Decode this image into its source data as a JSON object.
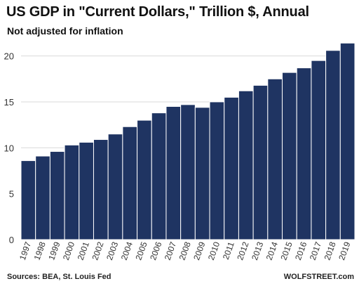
{
  "header": {
    "title": "US GDP in \"Current Dollars,\" Trillion $, Annual",
    "subtitle": "Not adjusted for inflation"
  },
  "footer": {
    "source": "Sources: BEA, St. Louis Fed",
    "brand": "WOLFSTREET.com"
  },
  "colors": {
    "bar": "#1f3462",
    "bar_edge": "#ffffff",
    "grid": "#d9d9d9",
    "axis_text": "#333333"
  },
  "chart_data": {
    "type": "bar",
    "title": "US GDP in \"Current Dollars,\" Trillion $, Annual",
    "subtitle": "Not adjusted for inflation",
    "xlabel": "",
    "ylabel": "",
    "categories": [
      "1997",
      "1998",
      "1999",
      "2000",
      "2001",
      "2002",
      "2003",
      "2004",
      "2005",
      "2006",
      "2007",
      "2008",
      "2009",
      "2010",
      "2011",
      "2012",
      "2013",
      "2014",
      "2015",
      "2016",
      "2017",
      "2018",
      "2019"
    ],
    "values": [
      8.6,
      9.1,
      9.6,
      10.3,
      10.6,
      10.9,
      11.5,
      12.3,
      13.0,
      13.8,
      14.5,
      14.7,
      14.4,
      15.0,
      15.5,
      16.2,
      16.8,
      17.5,
      18.2,
      18.7,
      19.5,
      20.6,
      21.4
    ],
    "yticks": [
      0,
      5,
      10,
      15,
      20
    ],
    "ylim": [
      0,
      21.5
    ],
    "grid": true,
    "legend": "none"
  }
}
